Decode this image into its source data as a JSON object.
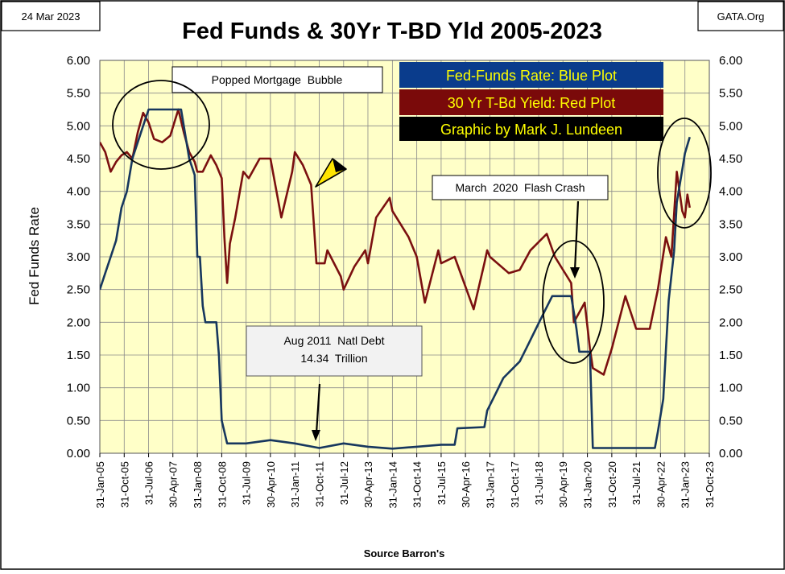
{
  "header": {
    "date": "24 Mar 2023",
    "source_site": "GATA.Org",
    "title": "Fed Funds & 30Yr T-BD Yld 2005-2023"
  },
  "legend": {
    "fed_funds": "Fed-Funds Rate: Blue Plot",
    "tbond": "30 Yr T-Bd Yield: Red Plot",
    "credit": "Graphic by Mark J. Lundeen"
  },
  "annotations": {
    "bubble": "Popped Mortgage  Bubble",
    "flash_crash": "March  2020  Flash Crash",
    "debt_line1": "Aug 2011  Natl Debt",
    "debt_line2": "14.34  Trillion"
  },
  "chart_data": {
    "type": "line",
    "title": "Fed Funds & 30Yr T-BD Yld 2005-2023",
    "ylabel": "Fed  Funds  Rate",
    "xlabel": "Source  Barron's",
    "ylim": [
      0,
      6
    ],
    "y_ticks": [
      "0.00",
      "0.50",
      "1.00",
      "1.50",
      "2.00",
      "2.50",
      "3.00",
      "3.50",
      "4.00",
      "4.50",
      "5.00",
      "5.50",
      "6.00"
    ],
    "x_ticks": [
      "31-Jan-05",
      "31-Oct-05",
      "31-Jul-06",
      "30-Apr-07",
      "31-Jan-08",
      "31-Oct-08",
      "31-Jul-09",
      "30-Apr-10",
      "31-Jan-11",
      "31-Oct-11",
      "31-Jul-12",
      "30-Apr-13",
      "31-Jan-14",
      "31-Oct-14",
      "31-Jul-15",
      "30-Apr-16",
      "31-Jan-17",
      "31-Oct-17",
      "31-Jul-18",
      "30-Apr-19",
      "31-Jan-20",
      "31-Oct-20",
      "31-Jul-21",
      "30-Apr-22",
      "31-Jan-23",
      "31-Oct-23"
    ],
    "grid": true,
    "colors": {
      "plot_bg": "#ffffc8",
      "fed_funds": "#17375e",
      "tbond": "#7b1010",
      "legend_blue": "#0a3c8c",
      "legend_red": "#7a0a0a",
      "legend_text": "#ffff00"
    },
    "series": [
      {
        "name": "Fed-Funds Rate",
        "color": "#17375e",
        "points": [
          [
            "31-Jan-05",
            2.5
          ],
          [
            "31-Mar-05",
            2.75
          ],
          [
            "31-May-05",
            3.0
          ],
          [
            "31-Jul-05",
            3.25
          ],
          [
            "31-Sep-05",
            3.75
          ],
          [
            "31-Nov-05",
            4.0
          ],
          [
            "31-Jan-06",
            4.5
          ],
          [
            "31-Mar-06",
            4.75
          ],
          [
            "31-May-06",
            5.0
          ],
          [
            "31-Jul-06",
            5.25
          ],
          [
            "31-Oct-06",
            5.25
          ],
          [
            "31-Jan-07",
            5.25
          ],
          [
            "30-Apr-07",
            5.25
          ],
          [
            "31-Jul-07",
            5.25
          ],
          [
            "31-Aug-07",
            5.0
          ],
          [
            "31-Oct-07",
            4.5
          ],
          [
            "31-Dec-07",
            4.25
          ],
          [
            "31-Jan-08",
            3.0
          ],
          [
            "29-Feb-08",
            3.0
          ],
          [
            "31-Mar-08",
            2.25
          ],
          [
            "30-Apr-08",
            2.0
          ],
          [
            "31-Jul-08",
            2.0
          ],
          [
            "31-Aug-08",
            2.0
          ],
          [
            "30-Sep-08",
            1.5
          ],
          [
            "31-Oct-08",
            0.5
          ],
          [
            "31-Dec-08",
            0.15
          ],
          [
            "31-Jul-09",
            0.15
          ],
          [
            "30-Apr-10",
            0.2
          ],
          [
            "31-Jan-11",
            0.15
          ],
          [
            "31-Oct-11",
            0.08
          ],
          [
            "31-Jul-12",
            0.15
          ],
          [
            "30-Apr-13",
            0.1
          ],
          [
            "31-Jan-14",
            0.07
          ],
          [
            "31-Oct-14",
            0.1
          ],
          [
            "31-Jul-15",
            0.13
          ],
          [
            "31-Dec-15",
            0.13
          ],
          [
            "31-Jan-16",
            0.38
          ],
          [
            "30-Nov-16",
            0.4
          ],
          [
            "31-Dec-16",
            0.65
          ],
          [
            "31-Mar-17",
            0.9
          ],
          [
            "30-Jun-17",
            1.15
          ],
          [
            "31-Dec-17",
            1.4
          ],
          [
            "31-Mar-18",
            1.65
          ],
          [
            "30-Jun-18",
            1.9
          ],
          [
            "30-Sep-18",
            2.15
          ],
          [
            "31-Dec-18",
            2.4
          ],
          [
            "31-Jul-19",
            2.4
          ],
          [
            "31-Aug-19",
            2.15
          ],
          [
            "30-Sep-19",
            1.9
          ],
          [
            "31-Oct-19",
            1.55
          ],
          [
            "29-Feb-20",
            1.55
          ],
          [
            "31-Mar-20",
            0.08
          ],
          [
            "31-Oct-20",
            0.08
          ],
          [
            "31-Jul-21",
            0.08
          ],
          [
            "28-Feb-22",
            0.08
          ],
          [
            "31-Mar-22",
            0.33
          ],
          [
            "31-May-22",
            0.83
          ],
          [
            "30-Jun-22",
            1.58
          ],
          [
            "31-Jul-22",
            2.33
          ],
          [
            "30-Sep-22",
            3.08
          ],
          [
            "31-Oct-22",
            3.83
          ],
          [
            "31-Dec-22",
            4.33
          ],
          [
            "31-Jan-23",
            4.58
          ],
          [
            "24-Mar-23",
            4.83
          ]
        ]
      },
      {
        "name": "30 Yr T-Bd Yield",
        "color": "#7b1010",
        "points": [
          [
            "31-Jan-05",
            4.75
          ],
          [
            "31-Mar-05",
            4.6
          ],
          [
            "31-May-05",
            4.3
          ],
          [
            "31-Jul-05",
            4.45
          ],
          [
            "31-Sep-05",
            4.55
          ],
          [
            "31-Nov-05",
            4.6
          ],
          [
            "31-Jan-06",
            4.5
          ],
          [
            "31-Mar-06",
            4.9
          ],
          [
            "31-May-06",
            5.2
          ],
          [
            "31-Jul-06",
            5.05
          ],
          [
            "31-Sep-06",
            4.8
          ],
          [
            "31-Dec-06",
            4.75
          ],
          [
            "31-Mar-07",
            4.85
          ],
          [
            "30-Jun-07",
            5.25
          ],
          [
            "31-Aug-07",
            4.9
          ],
          [
            "31-Oct-07",
            4.6
          ],
          [
            "31-Dec-07",
            4.45
          ],
          [
            "31-Jan-08",
            4.3
          ],
          [
            "31-Mar-08",
            4.3
          ],
          [
            "30-Jun-08",
            4.55
          ],
          [
            "31-Aug-08",
            4.4
          ],
          [
            "31-Oct-08",
            4.2
          ],
          [
            "30-Nov-08",
            3.3
          ],
          [
            "31-Dec-08",
            2.6
          ],
          [
            "31-Jan-09",
            3.2
          ],
          [
            "31-Mar-09",
            3.6
          ],
          [
            "30-Jun-09",
            4.3
          ],
          [
            "31-Aug-09",
            4.2
          ],
          [
            "31-Dec-09",
            4.5
          ],
          [
            "30-Apr-10",
            4.5
          ],
          [
            "31-Aug-10",
            3.6
          ],
          [
            "31-Dec-10",
            4.3
          ],
          [
            "31-Jan-11",
            4.6
          ],
          [
            "30-Apr-11",
            4.4
          ],
          [
            "31-Jul-11",
            4.1
          ],
          [
            "31-Aug-11",
            3.5
          ],
          [
            "30-Sep-11",
            2.9
          ],
          [
            "31-Dec-11",
            2.9
          ],
          [
            "31-Jan-12",
            3.1
          ],
          [
            "30-Jun-12",
            2.7
          ],
          [
            "31-Jul-12",
            2.5
          ],
          [
            "30-Nov-12",
            2.85
          ],
          [
            "31-Mar-13",
            3.1
          ],
          [
            "30-Apr-13",
            2.9
          ],
          [
            "31-Jul-13",
            3.6
          ],
          [
            "31-Dec-13",
            3.9
          ],
          [
            "31-Jan-14",
            3.7
          ],
          [
            "31-Jul-14",
            3.3
          ],
          [
            "31-Oct-14",
            3.0
          ],
          [
            "31-Jan-15",
            2.3
          ],
          [
            "30-Jun-15",
            3.1
          ],
          [
            "31-Jul-15",
            2.9
          ],
          [
            "31-Dec-15",
            3.0
          ],
          [
            "31-Jul-16",
            2.2
          ],
          [
            "30-Nov-16",
            2.9
          ],
          [
            "31-Dec-16",
            3.1
          ],
          [
            "31-Jan-17",
            3.0
          ],
          [
            "31-Aug-17",
            2.75
          ],
          [
            "31-Dec-17",
            2.8
          ],
          [
            "30-Apr-18",
            3.1
          ],
          [
            "31-Oct-18",
            3.35
          ],
          [
            "31-Jan-19",
            3.0
          ],
          [
            "31-Jul-19",
            2.6
          ],
          [
            "31-Aug-19",
            2.0
          ],
          [
            "31-Dec-19",
            2.3
          ],
          [
            "29-Feb-20",
            1.6
          ],
          [
            "31-Mar-20",
            1.3
          ],
          [
            "31-Jul-20",
            1.2
          ],
          [
            "31-Oct-20",
            1.6
          ],
          [
            "31-Mar-21",
            2.4
          ],
          [
            "31-Jul-21",
            1.9
          ],
          [
            "31-Dec-21",
            1.9
          ],
          [
            "31-Mar-22",
            2.5
          ],
          [
            "30-Jun-22",
            3.3
          ],
          [
            "31-Aug-22",
            3.0
          ],
          [
            "31-Oct-22",
            4.3
          ],
          [
            "31-Dec-22",
            3.7
          ],
          [
            "31-Jan-23",
            3.6
          ],
          [
            "28-Feb-23",
            3.95
          ],
          [
            "24-Mar-23",
            3.75
          ]
        ]
      }
    ]
  }
}
